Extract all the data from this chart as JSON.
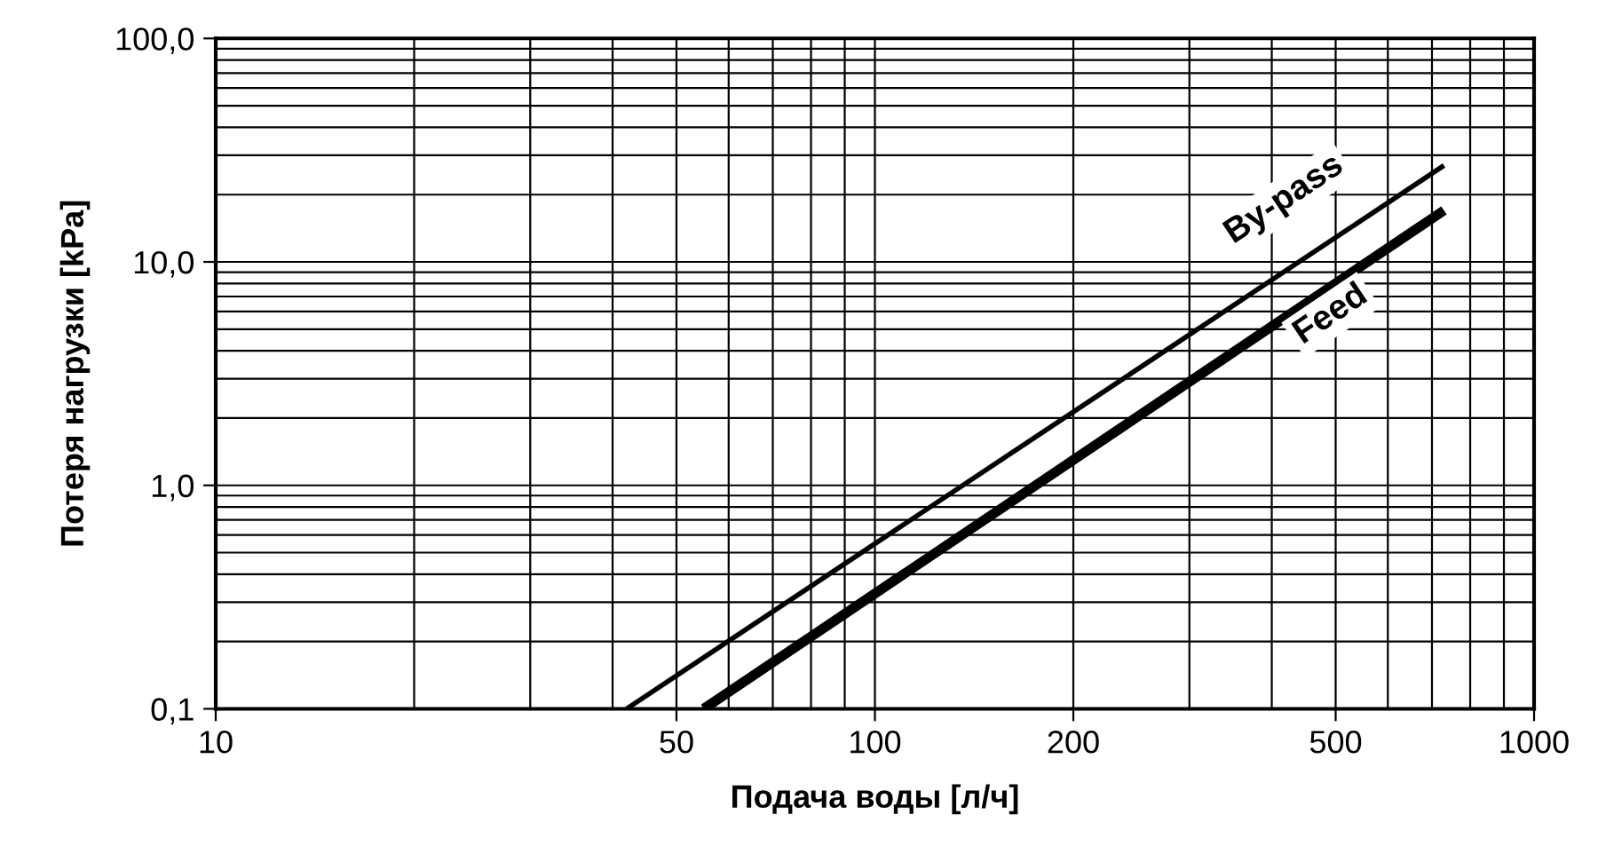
{
  "chart_data": {
    "type": "line",
    "xlabel": "Подача воды [л/ч]",
    "ylabel": "Потеря нагрузки [kPa]",
    "log": "xy",
    "grid": true,
    "legend": false,
    "xlim": [
      10,
      1000
    ],
    "ylim": [
      0.1,
      100
    ],
    "xticks": [
      10,
      {
        "value": 20,
        "label": null
      },
      {
        "value": 30,
        "label": null
      },
      {
        "value": 40,
        "label": null
      },
      50,
      {
        "value": 60,
        "label": null
      },
      {
        "value": 70,
        "label": null
      },
      {
        "value": 80,
        "label": null
      },
      {
        "value": 90,
        "label": null
      },
      100,
      200,
      {
        "value": 300,
        "label": null
      },
      {
        "value": 400,
        "label": null
      },
      500,
      {
        "value": 600,
        "label": null
      },
      {
        "value": 700,
        "label": null
      },
      {
        "value": 800,
        "label": null
      },
      {
        "value": 900,
        "label": null
      },
      1000
    ],
    "yticks": [
      {
        "value": 0.1,
        "label": "0,1"
      },
      {
        "value": 0.2,
        "label": null
      },
      {
        "value": 0.3,
        "label": null
      },
      {
        "value": 0.4,
        "label": null
      },
      {
        "value": 0.5,
        "label": null
      },
      {
        "value": 0.6,
        "label": null
      },
      {
        "value": 0.7,
        "label": null
      },
      {
        "value": 0.8,
        "label": null
      },
      {
        "value": 0.9,
        "label": null
      },
      {
        "value": 1,
        "label": "1,0"
      },
      {
        "value": 2,
        "label": null
      },
      {
        "value": 3,
        "label": null
      },
      {
        "value": 4,
        "label": null
      },
      {
        "value": 5,
        "label": null
      },
      {
        "value": 6,
        "label": null
      },
      {
        "value": 7,
        "label": null
      },
      {
        "value": 8,
        "label": null
      },
      {
        "value": 9,
        "label": null
      },
      {
        "value": 10,
        "label": "10,0"
      },
      {
        "value": 20,
        "label": null
      },
      {
        "value": 30,
        "label": null
      },
      {
        "value": 40,
        "label": null
      },
      {
        "value": 50,
        "label": null
      },
      {
        "value": 60,
        "label": null
      },
      {
        "value": 70,
        "label": null
      },
      {
        "value": 80,
        "label": null
      },
      {
        "value": 90,
        "label": null
      },
      {
        "value": 100,
        "label": "100,0"
      }
    ],
    "series": [
      {
        "name": "By-pass",
        "color": "#000000",
        "x": [
          42,
          730
        ],
        "values": [
          0.1,
          27
        ]
      },
      {
        "name": "Feed",
        "color": "#000000",
        "x": [
          55,
          730
        ],
        "values": [
          0.1,
          17
        ]
      }
    ]
  }
}
